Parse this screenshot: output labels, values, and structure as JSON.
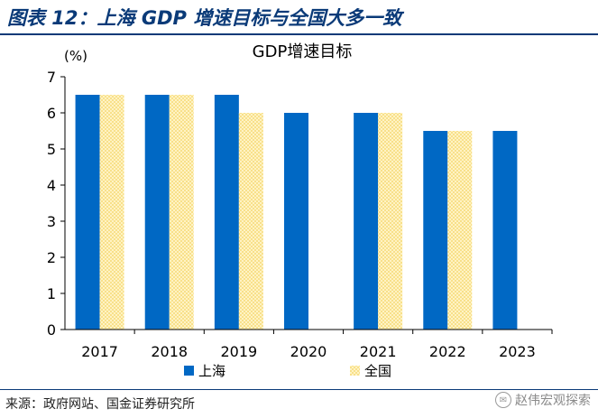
{
  "figure": {
    "title": "图表 12：上海 GDP 增速目标与全国大多一致",
    "source": "来源：政府网站、国金证券研究所",
    "watermark": "赵伟宏观探索"
  },
  "chart_data": {
    "type": "bar",
    "title": "GDP增速目标",
    "yunit": "(%)",
    "categories": [
      "2017",
      "2018",
      "2019",
      "2020",
      "2021",
      "2022",
      "2023"
    ],
    "series": [
      {
        "name": "上海",
        "color": "#0068c4",
        "values": [
          6.5,
          6.5,
          6.5,
          6.0,
          6.0,
          5.5,
          5.5
        ]
      },
      {
        "name": "全国",
        "color": "#f8e08a",
        "values": [
          6.5,
          6.5,
          6.0,
          null,
          6.0,
          5.5,
          null
        ]
      }
    ],
    "ylim": [
      0,
      7
    ],
    "yticks": [
      0,
      1,
      2,
      3,
      4,
      5,
      6,
      7
    ],
    "legend": "bottom",
    "grid": false
  }
}
